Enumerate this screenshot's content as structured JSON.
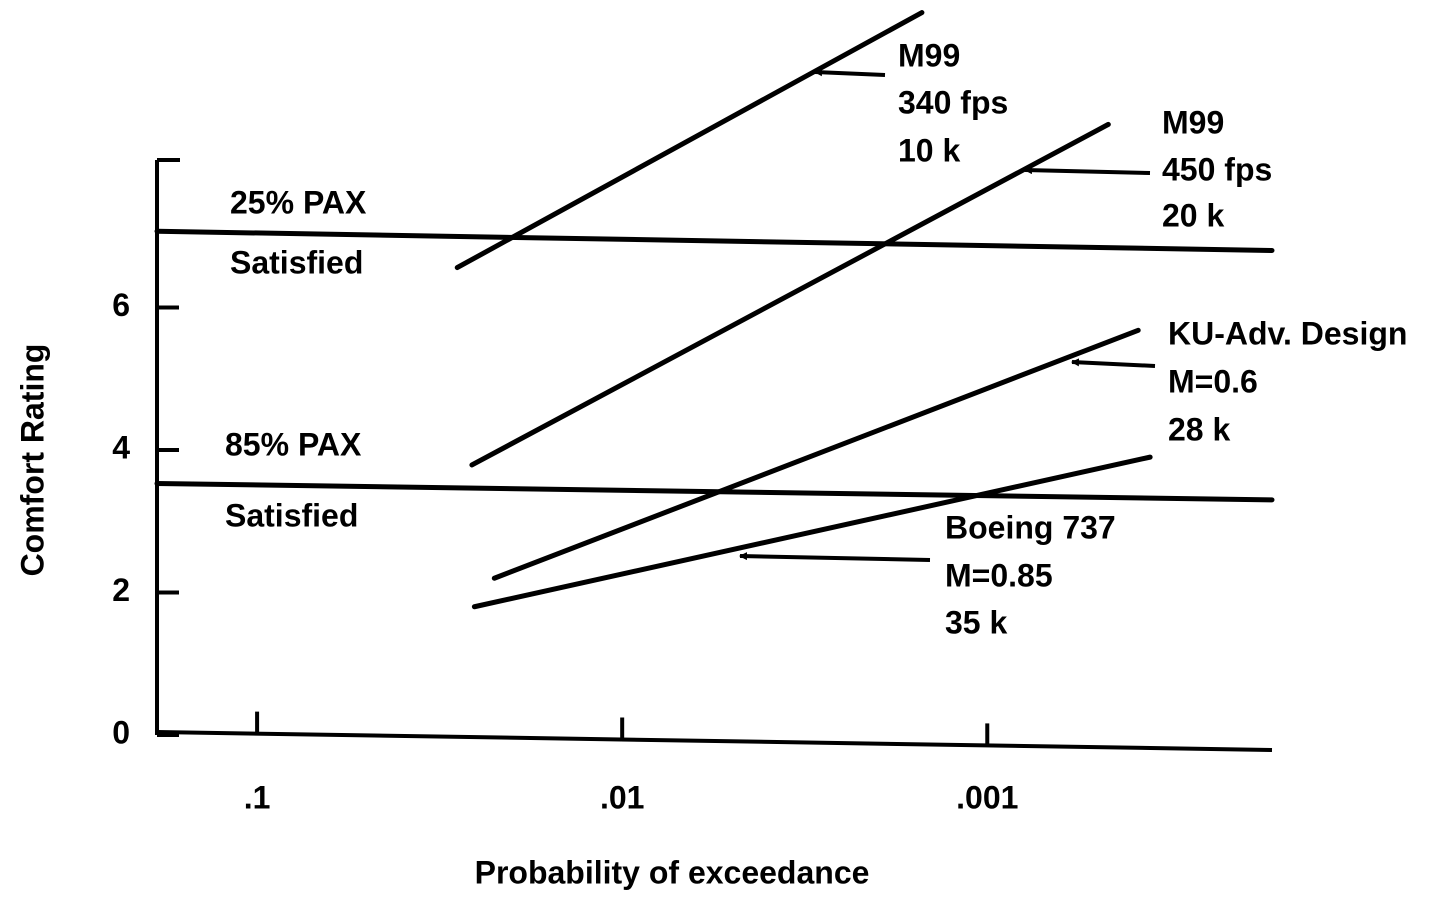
{
  "chart_data": {
    "type": "line",
    "x_label": "Probability of exceedance",
    "y_label": "Comfort Rating",
    "xscale": "log",
    "xlim": [
      0.188,
      0.000166
    ],
    "xticks": [
      {
        "value": 0.1,
        "label": ".1"
      },
      {
        "value": 0.01,
        "label": ".01"
      },
      {
        "value": 0.001,
        "label": ".001"
      }
    ],
    "ylim": [
      0,
      8
    ],
    "yticks": [
      0,
      2,
      4,
      6
    ],
    "grid": false,
    "series": [
      {
        "color": "#000000",
        "x": [
          0.0283,
          0.00151
        ],
        "values": [
          6.56,
          10.14
        ]
      },
      {
        "color": "#000000",
        "x": [
          0.0258,
          0.000466
        ],
        "values": [
          3.79,
          8.57
        ]
      },
      {
        "color": "#000000",
        "x": [
          0.0224,
          0.000386
        ],
        "values": [
          2.2,
          5.68
        ]
      },
      {
        "color": "#000000",
        "x": [
          0.0254,
          0.000358
        ],
        "values": [
          1.8,
          3.9
        ]
      },
      {
        "color": "#000000",
        "x": [
          0.188,
          0.000166
        ],
        "values": [
          7.07,
          6.8
        ]
      },
      {
        "color": "#000000",
        "x": [
          0.188,
          0.000166
        ],
        "values": [
          3.53,
          3.3
        ]
      }
    ],
    "annotations": [
      {
        "lines": [
          "M99",
          "340 fps",
          "10 k"
        ]
      },
      {
        "lines": [
          "M99",
          "450 fps",
          "20 k"
        ]
      },
      {
        "lines": [
          "KU-Adv. Design",
          "M=0.6",
          "28 k"
        ]
      },
      {
        "lines": [
          "Boeing  737",
          "M=0.85",
          "35 k"
        ]
      },
      {
        "lines": [
          "25% PAX",
          "Satisfied"
        ]
      },
      {
        "lines": [
          "85% PAX",
          "Satisfied"
        ]
      }
    ]
  }
}
